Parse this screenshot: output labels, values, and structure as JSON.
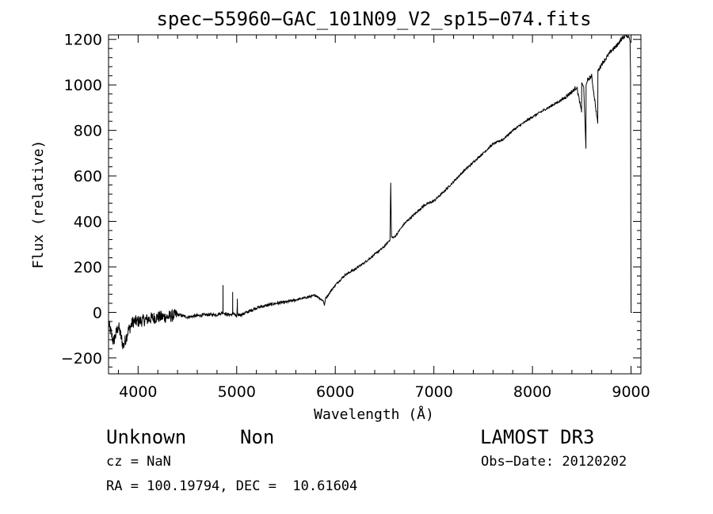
{
  "chart_data": {
    "type": "line",
    "title": "spec−55960−GAC_101N09_V2_sp15−074.fits",
    "xlabel": "Wavelength (Å)",
    "ylabel": "Flux (relative)",
    "xlim": [
      3700,
      9100
    ],
    "ylim": [
      -270,
      1220
    ],
    "xticks": [
      4000,
      5000,
      6000,
      7000,
      8000,
      9000
    ],
    "yticks": [
      -200,
      0,
      200,
      400,
      600,
      800,
      1000,
      1200
    ],
    "ytick_labels": [
      "−200",
      "0",
      "200",
      "400",
      "600",
      "800",
      "1000",
      "1200"
    ],
    "grid": false,
    "series": [
      {
        "name": "spectrum",
        "x": [
          3700,
          3750,
          3800,
          3850,
          3900,
          3950,
          4000,
          4100,
          4200,
          4300,
          4400,
          4500,
          4600,
          4700,
          4800,
          4860,
          4861,
          4862,
          4900,
          4958,
          4959,
          4960,
          5000,
          5006,
          5007,
          5008,
          5050,
          5100,
          5200,
          5300,
          5400,
          5500,
          5600,
          5700,
          5800,
          5880,
          5890,
          5900,
          6000,
          6100,
          6200,
          6300,
          6400,
          6500,
          6555,
          6562,
          6570,
          6600,
          6700,
          6800,
          6900,
          7000,
          7100,
          7200,
          7300,
          7400,
          7500,
          7600,
          7700,
          7800,
          7900,
          8000,
          8100,
          8200,
          8300,
          8400,
          8450,
          8498,
          8500,
          8520,
          8542,
          8544,
          8560,
          8600,
          8662,
          8664,
          8700,
          8750,
          8800,
          8850,
          8900,
          8950,
          8980,
          8990,
          8995,
          9000,
          9010
        ],
        "y": [
          -50,
          -130,
          -60,
          -150,
          -80,
          -40,
          -40,
          -30,
          -20,
          -20,
          -10,
          -20,
          -15,
          -10,
          -10,
          0,
          120,
          0,
          -10,
          -10,
          90,
          0,
          -20,
          30,
          60,
          -10,
          -10,
          0,
          20,
          30,
          40,
          45,
          55,
          65,
          75,
          50,
          30,
          60,
          120,
          165,
          190,
          220,
          255,
          290,
          320,
          570,
          330,
          330,
          390,
          430,
          470,
          490,
          530,
          575,
          620,
          660,
          700,
          740,
          760,
          800,
          830,
          860,
          885,
          910,
          935,
          970,
          990,
          880,
          1010,
          990,
          720,
          1000,
          1020,
          1040,
          830,
          1060,
          1090,
          1120,
          1150,
          1170,
          1200,
          1220,
          1210,
          1190,
          1050,
          0,
          0
        ]
      }
    ],
    "annotations": {
      "object": "Unknown",
      "subclass": "Non",
      "survey": "LAMOST DR3",
      "cz": "cz = NaN",
      "obs_date": "Obs−Date: 20120202",
      "coords": "RA = 100.19794, DEC =  10.61604"
    }
  }
}
